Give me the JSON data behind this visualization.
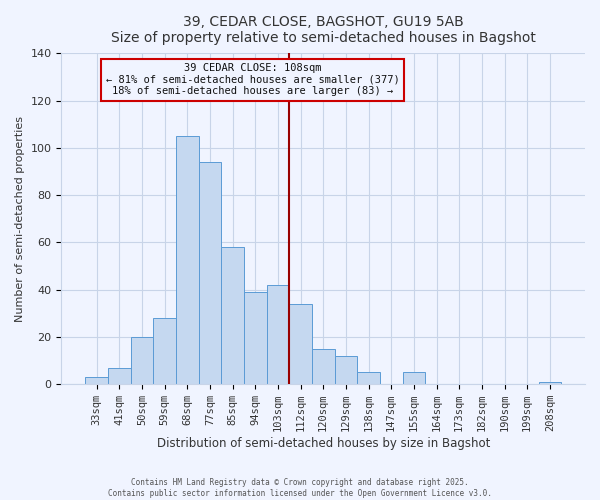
{
  "title": "39, CEDAR CLOSE, BAGSHOT, GU19 5AB",
  "subtitle": "Size of property relative to semi-detached houses in Bagshot",
  "xlabel": "Distribution of semi-detached houses by size in Bagshot",
  "ylabel": "Number of semi-detached properties",
  "bar_labels": [
    "33sqm",
    "41sqm",
    "50sqm",
    "59sqm",
    "68sqm",
    "77sqm",
    "85sqm",
    "94sqm",
    "103sqm",
    "112sqm",
    "120sqm",
    "129sqm",
    "138sqm",
    "147sqm",
    "155sqm",
    "164sqm",
    "173sqm",
    "182sqm",
    "190sqm",
    "199sqm",
    "208sqm"
  ],
  "bar_values": [
    3,
    7,
    20,
    28,
    105,
    94,
    58,
    39,
    42,
    34,
    15,
    12,
    5,
    0,
    5,
    0,
    0,
    0,
    0,
    0,
    1
  ],
  "bar_color": "#c5d8f0",
  "bar_edge_color": "#5b9bd5",
  "ylim": [
    0,
    140
  ],
  "yticks": [
    0,
    20,
    40,
    60,
    80,
    100,
    120,
    140
  ],
  "vline_x_index": 9,
  "vline_color": "#990000",
  "annotation_title": "39 CEDAR CLOSE: 108sqm",
  "annotation_line1": "← 81% of semi-detached houses are smaller (377)",
  "annotation_line2": "18% of semi-detached houses are larger (83) →",
  "annotation_box_color": "#cc0000",
  "footer_line1": "Contains HM Land Registry data © Crown copyright and database right 2025.",
  "footer_line2": "Contains public sector information licensed under the Open Government Licence v3.0.",
  "bg_color": "#f0f4ff",
  "grid_color": "#c8d4e8"
}
